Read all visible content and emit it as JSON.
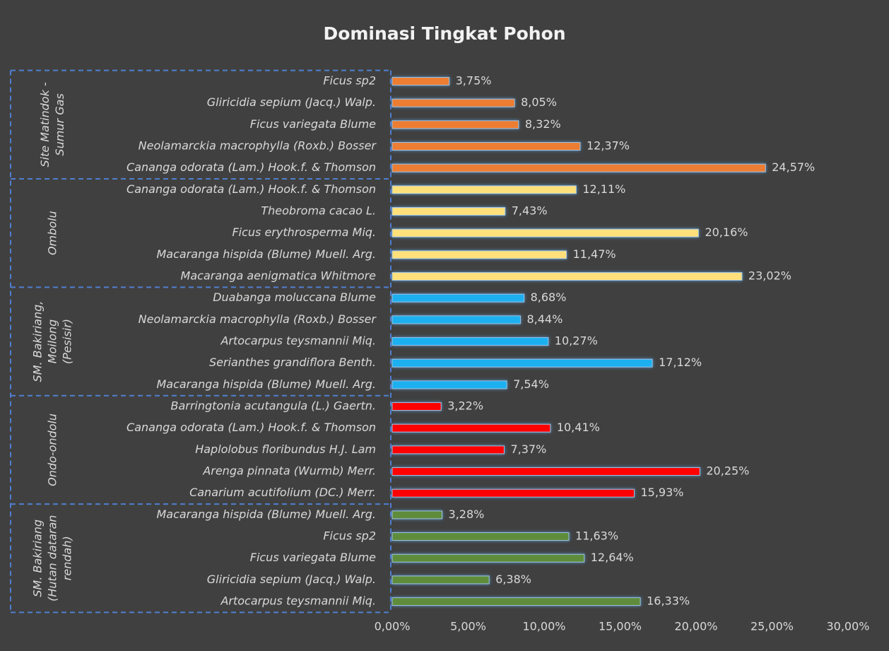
{
  "chart_data": {
    "type": "bar",
    "orientation": "horizontal",
    "title": "Dominasi Tingkat Pohon",
    "xlim": [
      0,
      30
    ],
    "xticks": [
      {
        "value": 0,
        "label": "0,00%"
      },
      {
        "value": 5,
        "label": "5,00%"
      },
      {
        "value": 10,
        "label": "10,00%"
      },
      {
        "value": 15,
        "label": "15,00%"
      },
      {
        "value": 20,
        "label": "20,00%"
      },
      {
        "value": 25,
        "label": "25,00%"
      },
      {
        "value": 30,
        "label": "30,00%"
      }
    ],
    "grid": false,
    "series": [
      {
        "name": [
          "Site Matindok -",
          "Sumur Gas"
        ],
        "color": "#ed7d31",
        "categories": [
          "Ficus sp2",
          "Gliricidia sepium (Jacq.) Walp.",
          "Ficus variegata Blume",
          "Neolamarckia macrophylla (Roxb.) Bosser",
          "Cananga odorata (Lam.) Hook.f. & Thomson"
        ],
        "values": [
          3.75,
          8.05,
          8.32,
          12.37,
          24.57
        ],
        "value_labels": [
          "3,75%",
          "8,05%",
          "8,32%",
          "12,37%",
          "24,57%"
        ]
      },
      {
        "name": [
          "Ombolu"
        ],
        "color": "#ffe07a",
        "categories": [
          "Cananga odorata (Lam.) Hook.f. & Thomson",
          "Theobroma cacao L.",
          "Ficus erythrosperma Miq.",
          "Macaranga hispida (Blume) Muell. Arg.",
          "Macaranga aenigmatica Whitmore"
        ],
        "values": [
          12.11,
          7.43,
          20.16,
          11.47,
          23.02
        ],
        "value_labels": [
          "12,11%",
          "7,43%",
          "20,16%",
          "11,47%",
          "23,02%"
        ]
      },
      {
        "name": [
          "SM. Bakiriang,",
          "Moilong",
          "(Pesisir)"
        ],
        "color": "#1ab0f0",
        "categories": [
          "Duabanga moluccana Blume",
          "Neolamarckia macrophylla (Roxb.) Bosser",
          "Artocarpus teysmannii Miq.",
          "Serianthes grandiflora Benth.",
          "Macaranga hispida (Blume) Muell. Arg."
        ],
        "values": [
          8.68,
          8.44,
          10.27,
          17.12,
          7.54
        ],
        "value_labels": [
          "8,68%",
          "8,44%",
          "10,27%",
          "17,12%",
          "7,54%"
        ]
      },
      {
        "name": [
          "Ondo-ondolu"
        ],
        "color": "#ff0000",
        "categories": [
          "Barringtonia acutangula (L.) Gaertn.",
          "Cananga odorata (Lam.) Hook.f. & Thomson",
          "Haplolobus floribundus H.J. Lam",
          "Arenga pinnata (Wurmb) Merr.",
          "Canarium acutifolium (DC.) Merr."
        ],
        "values": [
          3.22,
          10.41,
          7.37,
          20.25,
          15.93
        ],
        "value_labels": [
          "3,22%",
          "10,41%",
          "7,37%",
          "20,25%",
          "15,93%"
        ]
      },
      {
        "name": [
          "SM. Bakiriang",
          "(Hutan dataran",
          "rendah)"
        ],
        "color": "#5e8c3a",
        "categories": [
          "Macaranga hispida (Blume) Muell. Arg.",
          "Ficus sp2",
          "Ficus variegata Blume",
          "Gliricidia sepium (Jacq.) Walp.",
          "Artocarpus teysmannii Miq."
        ],
        "values": [
          3.28,
          11.63,
          12.64,
          6.38,
          16.33
        ],
        "value_labels": [
          "3,28%",
          "11,63%",
          "12,64%",
          "6,38%",
          "16,33%"
        ]
      }
    ]
  }
}
